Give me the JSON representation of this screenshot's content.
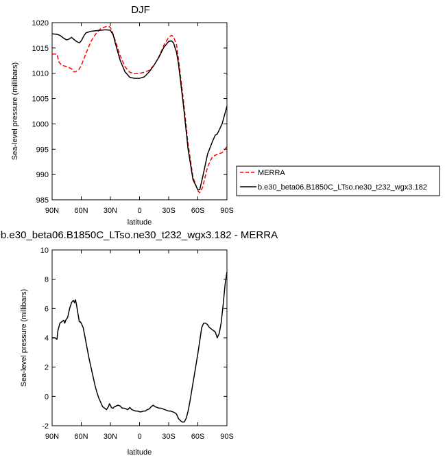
{
  "chart_data": [
    {
      "type": "line",
      "title": "DJF",
      "xlabel": "latitude",
      "ylabel": "Sea-level pressure (millibars)",
      "x_ticks": [
        {
          "value": 90,
          "label": "90N"
        },
        {
          "value": 60,
          "label": "60N"
        },
        {
          "value": 30,
          "label": "30N"
        },
        {
          "value": 0,
          "label": "0"
        },
        {
          "value": -30,
          "label": "30S"
        },
        {
          "value": -60,
          "label": "60S"
        },
        {
          "value": -90,
          "label": "90S"
        }
      ],
      "y_ticks": [
        985,
        990,
        995,
        1000,
        1005,
        1010,
        1015,
        1020
      ],
      "xlim": [
        90,
        -90
      ],
      "ylim": [
        985,
        1020
      ],
      "grid": false,
      "legend_position": "outside-right-bottom",
      "series": [
        {
          "name": "MERRA",
          "color": "#ff0000",
          "dash": "dashed",
          "x": [
            90,
            85,
            83,
            80,
            75,
            70,
            68,
            66,
            63,
            60,
            55,
            50,
            45,
            40,
            35,
            32,
            30,
            28,
            25,
            20,
            15,
            10,
            5,
            0,
            -5,
            -10,
            -15,
            -20,
            -25,
            -30,
            -33,
            -35,
            -38,
            -40,
            -45,
            -50,
            -55,
            -60,
            -62,
            -65,
            -70,
            -75,
            -80,
            -85,
            -90
          ],
          "y": [
            1013.8,
            1013.8,
            1012.2,
            1011.6,
            1011.3,
            1010.9,
            1010.3,
            1010.3,
            1010.6,
            1011.5,
            1014.0,
            1016.3,
            1017.8,
            1018.8,
            1019.2,
            1019.3,
            1019.0,
            1018.2,
            1016.5,
            1013.5,
            1011.3,
            1010.2,
            1009.9,
            1010.0,
            1010.2,
            1010.6,
            1011.6,
            1013.3,
            1015.5,
            1017.1,
            1017.5,
            1017.2,
            1015.7,
            1013.0,
            1005.0,
            996.0,
            989.5,
            986.8,
            986.4,
            987.5,
            991.5,
            993.5,
            994.0,
            994.3,
            995.5
          ]
        },
        {
          "name": "b.e30_beta06.B1850C_LTso.ne30_t232_wgx3.182",
          "color": "#000000",
          "dash": "solid",
          "x": [
            90,
            85,
            82,
            80,
            77,
            75,
            72,
            70,
            67,
            65,
            62,
            60,
            57,
            55,
            50,
            45,
            40,
            35,
            30,
            27,
            25,
            20,
            15,
            10,
            5,
            0,
            -5,
            -10,
            -15,
            -20,
            -25,
            -30,
            -33,
            -35,
            -38,
            -40,
            -45,
            -50,
            -55,
            -60,
            -62,
            -65,
            -70,
            -75,
            -78,
            -80,
            -85,
            -90
          ],
          "y": [
            1017.8,
            1017.7,
            1017.5,
            1017.2,
            1016.8,
            1016.6,
            1016.8,
            1017.1,
            1016.6,
            1016.3,
            1016.0,
            1016.4,
            1017.5,
            1018.0,
            1018.3,
            1018.4,
            1018.5,
            1018.6,
            1018.5,
            1017.5,
            1016.0,
            1012.6,
            1010.3,
            1009.2,
            1009.0,
            1009.0,
            1009.3,
            1010.3,
            1011.6,
            1013.2,
            1015.1,
            1016.3,
            1016.4,
            1016.0,
            1014.2,
            1012.0,
            1004.0,
            995.0,
            989.0,
            987.0,
            987.0,
            989.5,
            994.0,
            996.5,
            997.8,
            998.0,
            1000.0,
            1003.5
          ]
        }
      ]
    },
    {
      "type": "line",
      "title": "b.e30_beta06.B1850C_LTso.ne30_t232_wgx3.182 - MERRA",
      "xlabel": "latitude",
      "ylabel": "Sea-level pressure (millibars)",
      "x_ticks": [
        {
          "value": 90,
          "label": "90N"
        },
        {
          "value": 60,
          "label": "60N"
        },
        {
          "value": 30,
          "label": "30N"
        },
        {
          "value": 0,
          "label": "0"
        },
        {
          "value": -30,
          "label": "30S"
        },
        {
          "value": -60,
          "label": "60S"
        },
        {
          "value": -90,
          "label": "90S"
        }
      ],
      "y_ticks": [
        -2,
        0,
        2,
        4,
        6,
        8,
        10
      ],
      "xlim": [
        90,
        -90
      ],
      "ylim": [
        -2,
        10
      ],
      "grid": false,
      "series": [
        {
          "color": "#000000",
          "dash": "solid",
          "x": [
            90,
            87,
            85,
            84,
            82,
            80,
            78,
            77,
            76,
            74,
            72,
            70,
            69,
            68,
            67,
            66,
            65,
            64,
            63,
            62,
            61,
            60,
            58,
            56,
            54,
            52,
            50,
            48,
            46,
            44,
            42,
            40,
            38,
            36,
            34,
            32,
            31,
            30,
            29,
            28,
            27,
            26,
            25,
            24,
            22,
            20,
            18,
            16,
            14,
            12,
            10,
            8,
            6,
            4,
            2,
            0,
            -2,
            -4,
            -6,
            -8,
            -10,
            -12,
            -14,
            -16,
            -18,
            -20,
            -22,
            -24,
            -26,
            -28,
            -30,
            -32,
            -34,
            -36,
            -38,
            -40,
            -42,
            -44,
            -46,
            -48,
            -50,
            -52,
            -54,
            -56,
            -58,
            -60,
            -62,
            -64,
            -66,
            -68,
            -70,
            -72,
            -74,
            -76,
            -78,
            -80,
            -82,
            -84,
            -86,
            -88,
            -90
          ],
          "y": [
            4.0,
            4.0,
            3.9,
            4.5,
            5.0,
            5.1,
            5.2,
            5.0,
            5.2,
            5.4,
            6.0,
            6.4,
            6.5,
            6.55,
            6.4,
            6.6,
            6.3,
            5.9,
            5.5,
            5.1,
            5.1,
            5.0,
            4.7,
            4.0,
            3.3,
            2.6,
            2.0,
            1.4,
            0.8,
            0.3,
            -0.1,
            -0.4,
            -0.7,
            -0.8,
            -0.9,
            -0.7,
            -0.5,
            -0.6,
            -0.75,
            -0.8,
            -0.8,
            -0.7,
            -0.7,
            -0.65,
            -0.6,
            -0.65,
            -0.8,
            -0.8,
            -0.85,
            -0.9,
            -0.75,
            -0.9,
            -0.95,
            -1.0,
            -1.0,
            -1.05,
            -1.05,
            -1.0,
            -1.0,
            -0.9,
            -0.85,
            -0.7,
            -0.6,
            -0.7,
            -0.75,
            -0.8,
            -0.8,
            -0.85,
            -0.9,
            -0.95,
            -1.0,
            -1.0,
            -1.05,
            -1.1,
            -1.2,
            -1.5,
            -1.65,
            -1.75,
            -1.75,
            -1.5,
            -1.0,
            -0.3,
            0.5,
            1.3,
            2.1,
            2.9,
            3.8,
            4.7,
            5.0,
            5.0,
            4.9,
            4.7,
            4.6,
            4.5,
            4.4,
            4.0,
            4.3,
            5.0,
            6.2,
            7.6,
            8.5
          ]
        }
      ]
    }
  ]
}
